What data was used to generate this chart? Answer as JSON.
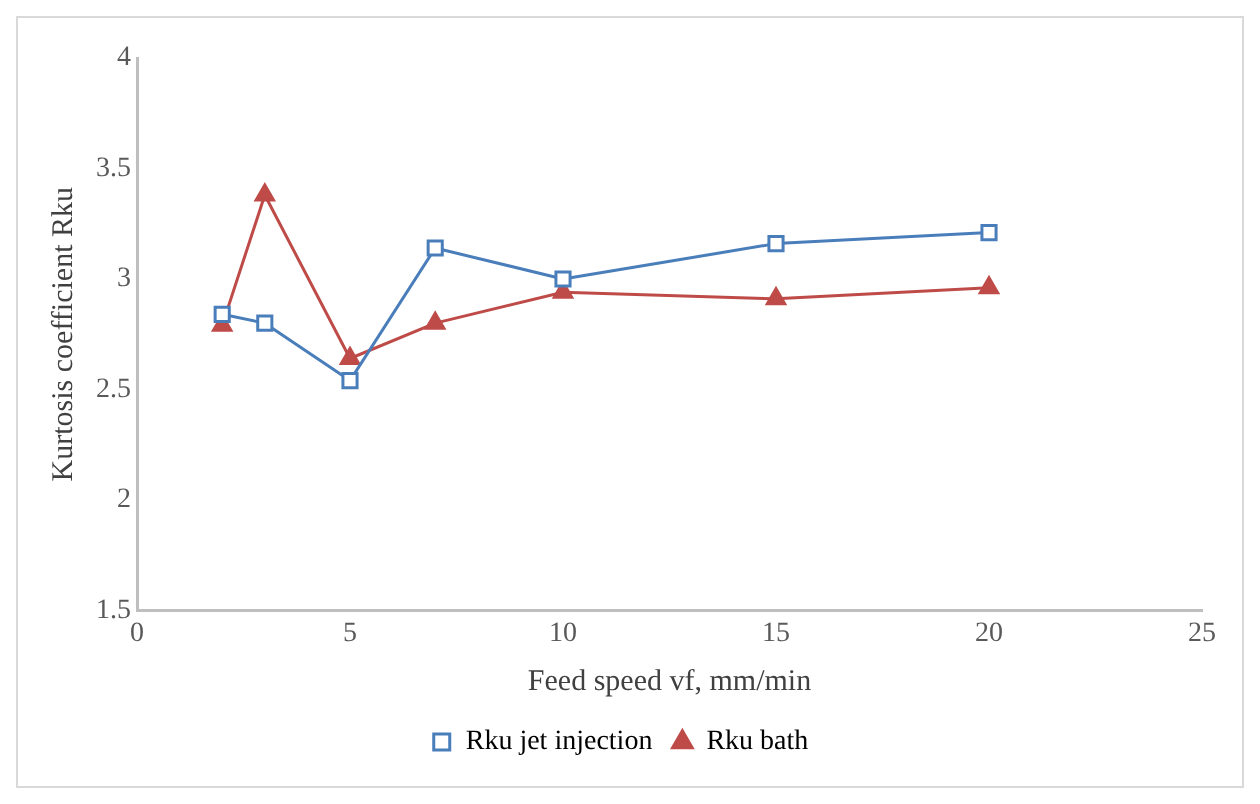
{
  "chart_data": {
    "type": "line",
    "xlabel": "Feed speed vf, mm/min",
    "ylabel": "Kurtosis coefficient Rku",
    "x": [
      2,
      3,
      5,
      7,
      10,
      15,
      20
    ],
    "series": [
      {
        "name": "Rku jet injection",
        "color": "#4a7ebb",
        "marker": "square",
        "values": [
          2.84,
          2.8,
          2.54,
          3.14,
          3.0,
          3.16,
          3.21
        ]
      },
      {
        "name": "Rku bath",
        "color": "#be4b48",
        "marker": "triangle",
        "values": [
          2.79,
          3.38,
          2.64,
          2.8,
          2.94,
          2.91,
          2.96
        ]
      }
    ],
    "xlim": [
      0,
      25
    ],
    "xticks": [
      0,
      5,
      10,
      15,
      20,
      25
    ],
    "ylim": [
      1.5,
      4
    ],
    "yticks": [
      1.5,
      2,
      2.5,
      3,
      3.5,
      4
    ],
    "grid": false,
    "legend": "bottom",
    "line_style": "solid"
  }
}
